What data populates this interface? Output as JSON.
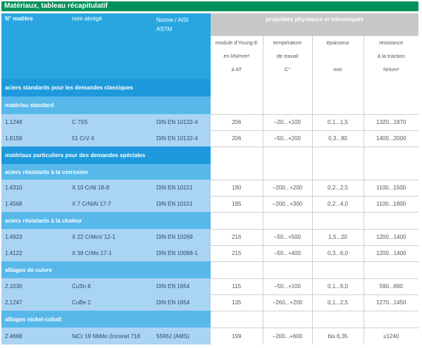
{
  "title": "Matériaux, tableau récapitulatif",
  "header": {
    "col_number": "N° matière",
    "col_short_name": "nom abrégé",
    "col_norm_line1": "Norme / AISI",
    "col_norm_line2": "ASTM",
    "properties_title": "propriétés physiques et mécaniques",
    "col_modulus": [
      "module d'Young E",
      "en kN/mm²",
      "à AT"
    ],
    "col_temperature": [
      "température",
      "de travail",
      "C°"
    ],
    "col_thickness": [
      "épaisseur",
      "",
      "mm"
    ],
    "col_strength": [
      "résistance",
      "à la traction",
      "N/mm²"
    ]
  },
  "sections": {
    "standard": "aciers standards pour les demandes classiques",
    "standard_material": "matériau standard",
    "special": "matériaux particuliers pour des demandes spéciales",
    "corrosion": "aciers résistants à la corrosion",
    "heat": "aciers résistants à la chaleur",
    "copper": "alliages de cuivre",
    "nickel": "alliages nickel-cobalt"
  },
  "rows": [
    {
      "number": "1.1248",
      "name": "C 75S",
      "norm": "DIN EN 10132-4",
      "modulus": "206",
      "temperature": "–20...+100",
      "thickness": "0,1...1,5",
      "strength": "1320...1870"
    },
    {
      "number": "1.8159",
      "name": "51 CrV 4",
      "norm": "DIN EN 10132-4",
      "modulus": "206",
      "temperature": "–50...+200",
      "thickness": "0,3...80",
      "strength": "1400...2000"
    },
    {
      "number": "1.4310",
      "name": "X 10 CrNi 18-8",
      "norm": "DIN EN 10151",
      "modulus": "190",
      "temperature": "–200...+200",
      "thickness": "0,2...2,5",
      "strength": "1100...1500"
    },
    {
      "number": "1.4568",
      "name": "X 7 CrNiAl 17-7",
      "norm": "DIN EN 10151",
      "modulus": "195",
      "temperature": "–200...+300",
      "thickness": "0,2...4,0",
      "strength": "1100...1800"
    },
    {
      "number": "1.4923",
      "name": "X 22 CrMoV 12-1",
      "norm": "DIN EN 10269",
      "modulus": "216",
      "temperature": "–50...+500",
      "thickness": "1,5...20",
      "strength": "1200...1400"
    },
    {
      "number": "1.4122",
      "name": "X 39 CrMo 17-1",
      "norm": "DIN EN 10088-1",
      "modulus": "215",
      "temperature": "–50...+400",
      "thickness": "0,3...6,0",
      "strength": "1200...1400"
    },
    {
      "number": "2.1030",
      "name": "CuSn 8",
      "norm": "DIN EN 1654",
      "modulus": "115",
      "temperature": "–50...+100",
      "thickness": "0,1...6,0",
      "strength": "590...690"
    },
    {
      "number": "2.1247",
      "name": "CuBe 2",
      "norm": "DIN EN 1654",
      "modulus": "135",
      "temperature": "–260...+200",
      "thickness": "0,1...2,5",
      "strength": "1270...1450"
    },
    {
      "number": "2.4668",
      "name": "NiCr 19 NbMo (Inconel 718",
      "norm": "5596J (AMS)",
      "modulus": "199",
      "temperature": "–200...+600",
      "thickness": "bis 6,35",
      "strength": "≥1240"
    }
  ]
}
